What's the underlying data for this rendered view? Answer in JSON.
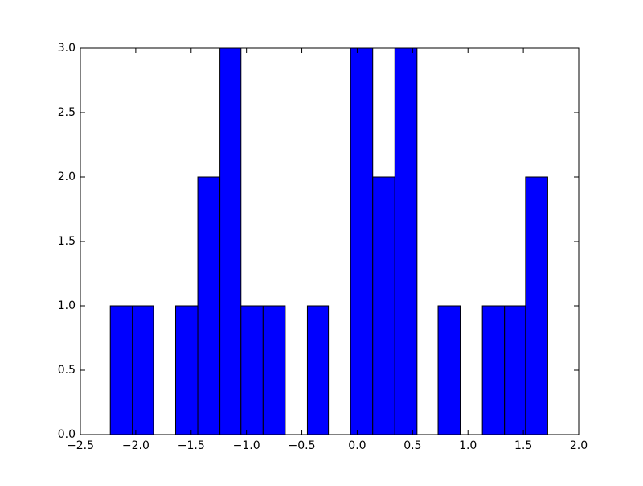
{
  "chart_data": {
    "type": "histogram",
    "bins": [
      -2.23,
      -2.03,
      -1.84,
      -1.64,
      -1.44,
      -1.24,
      -1.05,
      -0.85,
      -0.65,
      -0.45,
      -0.26,
      -0.06,
      0.14,
      0.34,
      0.54,
      0.73,
      0.93,
      1.13,
      1.33,
      1.52,
      1.72
    ],
    "counts": [
      1,
      1,
      0,
      1,
      2,
      3,
      1,
      1,
      0,
      1,
      0,
      3,
      2,
      3,
      0,
      1,
      0,
      1,
      1,
      2
    ],
    "color": "#0000ff",
    "xlim": [
      -2.5,
      2.0
    ],
    "xticks": [
      {
        "value": -2.5,
        "label": "−2.5"
      },
      {
        "value": -2.0,
        "label": "−2.0"
      },
      {
        "value": -1.5,
        "label": "−1.5"
      },
      {
        "value": -1.0,
        "label": "−1.0"
      },
      {
        "value": -0.5,
        "label": "−0.5"
      },
      {
        "value": 0,
        "label": "0.0"
      },
      {
        "value": 0.5,
        "label": "0.5"
      },
      {
        "value": 1.0,
        "label": "1.0"
      },
      {
        "value": 1.5,
        "label": "1.5"
      },
      {
        "value": 2.0,
        "label": "2.0"
      }
    ],
    "ylim": [
      0,
      3
    ],
    "yticks": [
      {
        "value": 0,
        "label": "0.0"
      },
      {
        "value": 0.5,
        "label": "0.5"
      },
      {
        "value": 1,
        "label": "1.0"
      },
      {
        "value": 1.5,
        "label": "1.5"
      },
      {
        "value": 2,
        "label": "2.0"
      },
      {
        "value": 2.5,
        "label": "2.5"
      },
      {
        "value": 3,
        "label": "3.0"
      }
    ]
  }
}
